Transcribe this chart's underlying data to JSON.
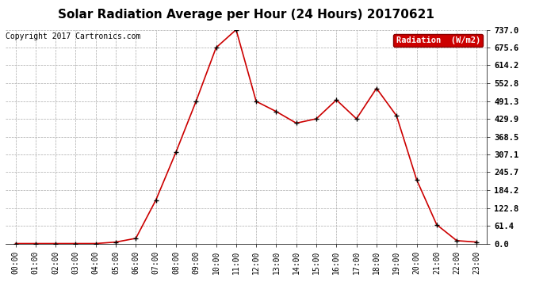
{
  "title": "Solar Radiation Average per Hour (24 Hours) 20170621",
  "copyright": "Copyright 2017 Cartronics.com",
  "legend_label": "Radiation  (W/m2)",
  "hours": [
    "00:00",
    "01:00",
    "02:00",
    "03:00",
    "04:00",
    "05:00",
    "06:00",
    "07:00",
    "08:00",
    "09:00",
    "10:00",
    "11:00",
    "12:00",
    "13:00",
    "14:00",
    "15:00",
    "16:00",
    "17:00",
    "18:00",
    "19:00",
    "20:00",
    "21:00",
    "22:00",
    "23:00"
  ],
  "values": [
    0.0,
    0.0,
    0.0,
    0.0,
    0.0,
    5.0,
    18.0,
    150.0,
    315.0,
    490.0,
    675.0,
    737.0,
    490.0,
    455.0,
    415.0,
    430.0,
    495.0,
    430.0,
    535.0,
    440.0,
    220.0,
    65.0,
    10.0,
    5.0
  ],
  "line_color": "#cc0000",
  "marker_color": "#000000",
  "background_color": "#ffffff",
  "grid_color": "#aaaaaa",
  "ylim": [
    0,
    737.0
  ],
  "yticks": [
    0.0,
    61.4,
    122.8,
    184.2,
    245.7,
    307.1,
    368.5,
    429.9,
    491.3,
    552.8,
    614.2,
    675.6,
    737.0
  ],
  "title_fontsize": 11,
  "copyright_fontsize": 7,
  "legend_bg": "#cc0000",
  "legend_text_color": "#ffffff",
  "legend_fontsize": 7.5
}
